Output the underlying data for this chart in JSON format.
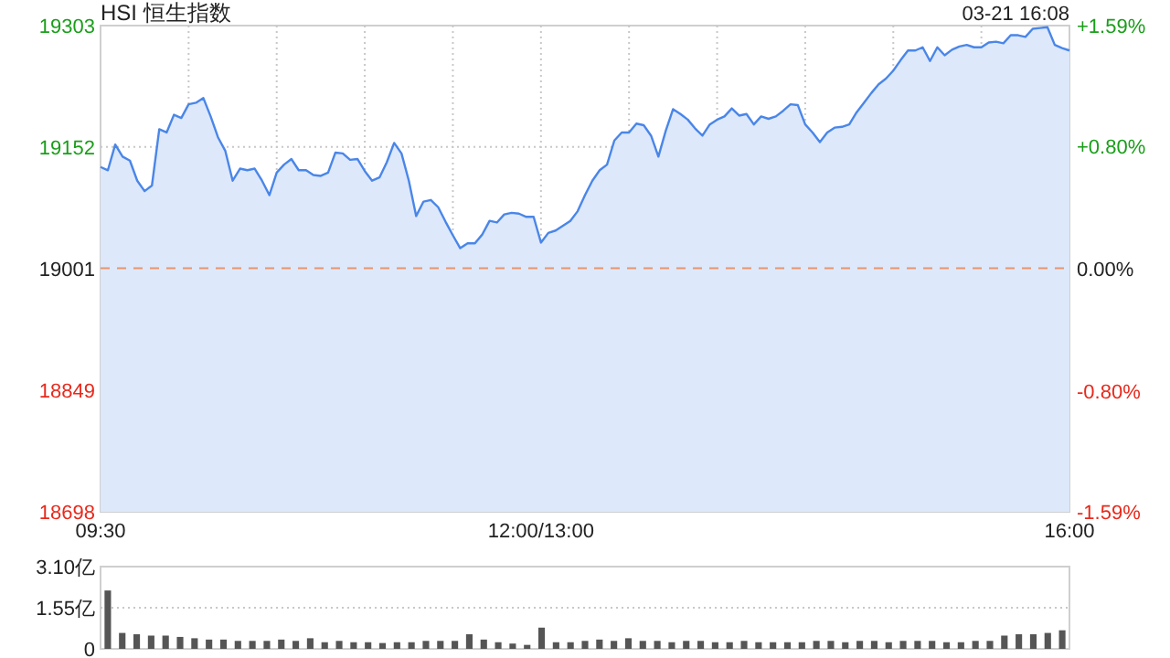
{
  "chart_data": [
    {
      "type": "area",
      "title": "HSI 恒生指数",
      "annotations": [
        "03-21 16:08"
      ],
      "color": "#4a86e8",
      "grid": true,
      "categories": [
        "09:30",
        null,
        null,
        null,
        null,
        null,
        null,
        null,
        null,
        null,
        null,
        null,
        null,
        null,
        null,
        null,
        null,
        null,
        null,
        null,
        null,
        null,
        null,
        null,
        null,
        null,
        null,
        null,
        null,
        null,
        null,
        null,
        null,
        null,
        null,
        null,
        null,
        null,
        null,
        null,
        null,
        null,
        null,
        null,
        null,
        null,
        null,
        null,
        null,
        null,
        null,
        null,
        null,
        null,
        null,
        null,
        null,
        null,
        null,
        null,
        "12:00/13:00",
        null,
        null,
        null,
        null,
        null,
        null,
        null,
        null,
        null,
        null,
        null,
        null,
        null,
        null,
        null,
        null,
        null,
        null,
        null,
        null,
        null,
        null,
        null,
        null,
        null,
        null,
        null,
        null,
        null,
        null,
        null,
        null,
        null,
        null,
        null,
        null,
        null,
        null,
        null,
        null,
        null,
        null,
        null,
        null,
        null,
        null,
        null,
        null,
        null,
        null,
        null,
        null,
        null,
        null,
        null,
        null,
        null,
        null,
        null,
        null,
        null,
        null,
        null,
        null,
        null,
        null,
        null,
        null,
        null,
        null,
        null,
        "16:00"
      ],
      "values": [
        19127,
        19123,
        19155,
        19140,
        19135,
        19110,
        19097,
        19104,
        19174,
        19170,
        19192,
        19188,
        19205,
        19207,
        19213,
        19190,
        19164,
        19147,
        19110,
        19125,
        19123,
        19125,
        19110,
        19092,
        19120,
        19130,
        19137,
        19123,
        19123,
        19117,
        19116,
        19120,
        19145,
        19144,
        19136,
        19137,
        19122,
        19110,
        19114,
        19133,
        19157,
        19144,
        19110,
        19066,
        19084,
        19086,
        19077,
        19059,
        19042,
        19026,
        19032,
        19032,
        19043,
        19060,
        19058,
        19068,
        19070,
        19069,
        19065,
        19065,
        19033,
        19045,
        19048,
        19054,
        19060,
        19072,
        19092,
        19110,
        19123,
        19130,
        19160,
        19170,
        19170,
        19181,
        19179,
        19166,
        19140,
        19172,
        19199,
        19193,
        19186,
        19175,
        19166,
        19180,
        19186,
        19190,
        19200,
        19191,
        19193,
        19180,
        19190,
        19187,
        19190,
        19197,
        19205,
        19204,
        19180,
        19170,
        19158,
        19170,
        19176,
        19177,
        19180,
        19195,
        19207,
        19219,
        19230,
        19237,
        19247,
        19260,
        19272,
        19272,
        19276,
        19259,
        19276,
        19266,
        19273,
        19277,
        19279,
        19276,
        19276,
        19282,
        19283,
        19281,
        19291,
        19291,
        19289,
        19299,
        19300,
        19301,
        19279,
        19275,
        19272
      ],
      "ylim": [
        18698,
        19303
      ],
      "yticks": [
        18698,
        18849,
        19001,
        19152,
        19303
      ],
      "y2lim": [
        -1.59,
        1.59
      ],
      "y2ticks": [
        {
          "value": 1.59,
          "label": "+1.59%"
        },
        {
          "value": 0.8,
          "label": "+0.80%"
        },
        {
          "value": 0,
          "label": "0.00%"
        },
        {
          "value": -0.8,
          "label": "-0.80%"
        },
        {
          "value": -1.59,
          "label": "-1.59%"
        }
      ],
      "ref_lines": [
        {
          "axis": "y",
          "value": 19001,
          "color": "#e8956b",
          "line_style": "dashed"
        }
      ]
    },
    {
      "type": "bar",
      "color": "#555555",
      "grid": "y",
      "tick_labels": "y",
      "categories": [
        null,
        null,
        null,
        null,
        null,
        null,
        null,
        null,
        null,
        null,
        null,
        null,
        null,
        null,
        null,
        null,
        null,
        null,
        null,
        null,
        null,
        null,
        null,
        null,
        null,
        null,
        null,
        null,
        null,
        null,
        null,
        null,
        null,
        null,
        null,
        null,
        null,
        null,
        null,
        null,
        null,
        null,
        null,
        null,
        null,
        null,
        null,
        null,
        null,
        null,
        null,
        null,
        null,
        null,
        null,
        null,
        null,
        null,
        null,
        null,
        null,
        null,
        null,
        null,
        null,
        null,
        null
      ],
      "values": [
        2.2,
        0.6,
        0.55,
        0.5,
        0.5,
        0.45,
        0.4,
        0.35,
        0.35,
        0.3,
        0.3,
        0.3,
        0.35,
        0.3,
        0.4,
        0.25,
        0.3,
        0.25,
        0.25,
        0.22,
        0.25,
        0.25,
        0.3,
        0.3,
        0.3,
        0.55,
        0.35,
        0.25,
        0.2,
        0.15,
        0.8,
        0.25,
        0.25,
        0.3,
        0.35,
        0.3,
        0.4,
        0.3,
        0.3,
        0.25,
        0.3,
        0.3,
        0.25,
        0.25,
        0.3,
        0.25,
        0.25,
        0.25,
        0.25,
        0.3,
        0.3,
        0.25,
        0.3,
        0.3,
        0.25,
        0.3,
        0.3,
        0.3,
        0.25,
        0.25,
        0.3,
        0.3,
        0.5,
        0.55,
        0.55,
        0.6,
        0.7
      ],
      "ylim": [
        0,
        3.1
      ],
      "yticks": [
        {
          "value": 3.1,
          "label": "3.10亿"
        },
        {
          "value": 1.55,
          "label": "1.55亿"
        },
        {
          "value": 0,
          "label": "0"
        }
      ]
    }
  ]
}
